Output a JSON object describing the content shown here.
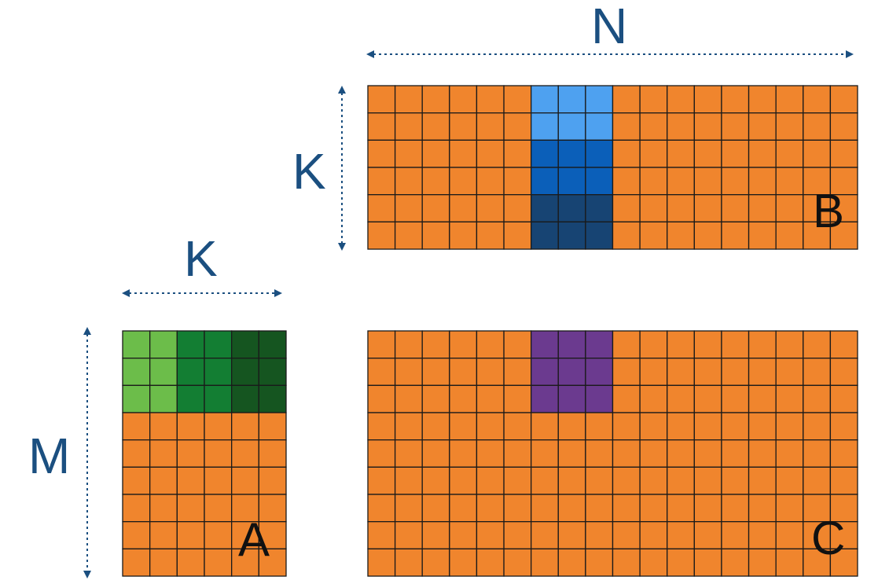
{
  "dimension_labels": {
    "b_width": "N",
    "b_height": "K",
    "a_width": "K",
    "a_height": "M"
  },
  "matrix_labels": {
    "a": "A",
    "b": "B",
    "c": "C"
  },
  "colors": {
    "base": "#f0852d",
    "grid_line": "#1a1a1a",
    "dim_text": "#1b4f80",
    "arrow": "#1b4f80",
    "b_tile_1": "#4ea1f0",
    "b_tile_2": "#0b5fb9",
    "b_tile_3": "#174473",
    "a_tile_1": "#6cbd4a",
    "a_tile_2": "#137e33",
    "a_tile_3": "#155520",
    "c_tile": "#6b3a8f"
  },
  "matrices": {
    "a": {
      "rows": 9,
      "cols": 6,
      "highlights": [
        {
          "rows": [
            0,
            2
          ],
          "cols": [
            0,
            1
          ],
          "color_key": "a_tile_1"
        },
        {
          "rows": [
            0,
            2
          ],
          "cols": [
            2,
            3
          ],
          "color_key": "a_tile_2"
        },
        {
          "rows": [
            0,
            2
          ],
          "cols": [
            4,
            5
          ],
          "color_key": "a_tile_3"
        }
      ]
    },
    "b": {
      "rows": 6,
      "cols": 18,
      "highlights": [
        {
          "rows": [
            0,
            1
          ],
          "cols": [
            6,
            8
          ],
          "color_key": "b_tile_1"
        },
        {
          "rows": [
            2,
            3
          ],
          "cols": [
            6,
            8
          ],
          "color_key": "b_tile_2"
        },
        {
          "rows": [
            4,
            5
          ],
          "cols": [
            6,
            8
          ],
          "color_key": "b_tile_3"
        }
      ]
    },
    "c": {
      "rows": 9,
      "cols": 18,
      "highlights": [
        {
          "rows": [
            0,
            2
          ],
          "cols": [
            6,
            8
          ],
          "color_key": "c_tile"
        }
      ]
    }
  }
}
